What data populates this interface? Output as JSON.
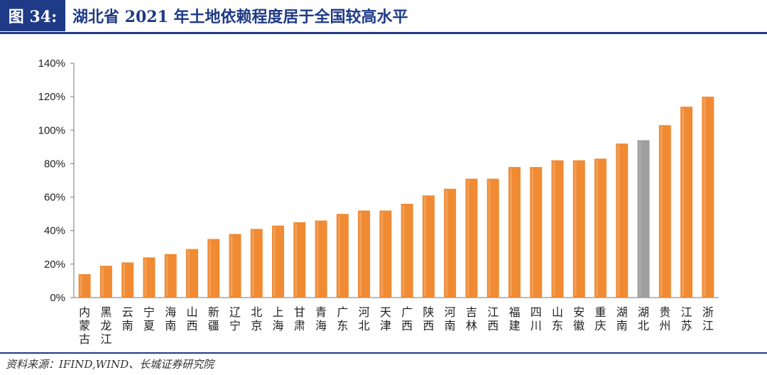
{
  "header": {
    "figure_label": "图 34:",
    "title": "湖北省 2021 年土地依赖程度居于全国较高水平"
  },
  "footer": {
    "source": "资料来源：IFIND,WIND、长城证券研究院"
  },
  "colors": {
    "accent": "#1f3a86",
    "bar": "#f08a33",
    "bar_highlight": "#9e9e9e"
  },
  "chart_data": {
    "type": "bar",
    "title": "",
    "xlabel": "",
    "ylabel": "",
    "ylim": [
      0,
      140
    ],
    "yticks": [
      "0%",
      "20%",
      "40%",
      "60%",
      "80%",
      "100%",
      "120%",
      "140%"
    ],
    "ytick_values": [
      0,
      20,
      40,
      60,
      80,
      100,
      120,
      140
    ],
    "highlight": "湖北",
    "categories": [
      "内蒙古",
      "黑龙江",
      "云南",
      "宁夏",
      "海南",
      "山西",
      "新疆",
      "辽宁",
      "北京",
      "上海",
      "甘肃",
      "青海",
      "广东",
      "河北",
      "天津",
      "广西",
      "陕西",
      "河南",
      "吉林",
      "江西",
      "福建",
      "四川",
      "山东",
      "安徽",
      "重庆",
      "湖南",
      "湖北",
      "贵州",
      "江苏",
      "浙江"
    ],
    "values": [
      14,
      19,
      21,
      24,
      26,
      29,
      35,
      38,
      41,
      43,
      45,
      46,
      50,
      52,
      52,
      56,
      61,
      65,
      71,
      71,
      78,
      78,
      82,
      82,
      83,
      92,
      94,
      103,
      114,
      120
    ]
  }
}
